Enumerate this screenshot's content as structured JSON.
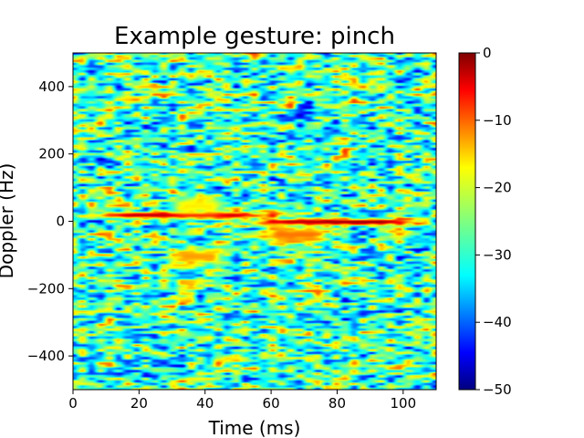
{
  "chart_data": {
    "type": "heatmap",
    "title": "Example gesture: pinch",
    "xlabel": "Time (ms)",
    "ylabel": "Doppler (Hz)",
    "xlim": [
      0,
      110
    ],
    "ylim": [
      -500,
      500
    ],
    "x_ticks": [
      0,
      20,
      40,
      60,
      80,
      100
    ],
    "x_tick_labels": [
      "0",
      "20",
      "40",
      "60",
      "80",
      "100"
    ],
    "y_ticks": [
      -400,
      -200,
      0,
      200,
      400
    ],
    "y_tick_labels": [
      "−400",
      "−200",
      "0",
      "200",
      "400"
    ],
    "colorbar": {
      "colormap": "jet",
      "range": [
        -50,
        0
      ],
      "ticks": [
        0,
        -10,
        -20,
        -30,
        -40,
        -50
      ],
      "tick_labels": [
        "0",
        "−10",
        "−20",
        "−30",
        "−40",
        "−50"
      ]
    },
    "background_level_db": -28,
    "features": [
      {
        "name": "upper stroke",
        "x": [
          10,
          55
        ],
        "y": 18,
        "peak_db": -3
      },
      {
        "name": "lower stroke",
        "x": [
          58,
          100
        ],
        "y": -2,
        "peak_db": -1
      },
      {
        "name": "upper lobe",
        "x": [
          32,
          44
        ],
        "y": 45,
        "peak_db": -18
      },
      {
        "name": "lower lobe",
        "x": [
          32,
          44
        ],
        "y": -105,
        "peak_db": -14
      },
      {
        "name": "secondary lobe",
        "x": [
          60,
          75
        ],
        "y": -40,
        "peak_db": -12
      }
    ]
  }
}
